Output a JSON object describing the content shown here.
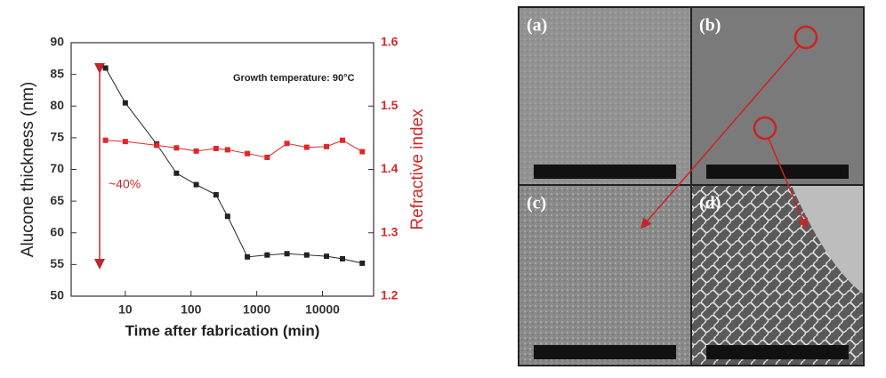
{
  "chart_data": {
    "type": "line",
    "xlabel": "Time after fabrication (min)",
    "ylabel": "Alucone thickness (nm)",
    "y2label": "Refractive index",
    "annotations": [
      "Growth temperature: 90°C",
      "~40%"
    ],
    "xscale": "log",
    "x": [
      5,
      10,
      30,
      60,
      120,
      240,
      360,
      720,
      1440,
      2880,
      5760,
      11520,
      20160,
      40320
    ],
    "series": [
      {
        "name": "Alucone thickness",
        "color": "#222222",
        "axis": "y",
        "values": [
          86,
          80.5,
          74,
          69.4,
          67.6,
          66,
          62.6,
          56.2,
          56.5,
          56.7,
          56.5,
          56.3,
          55.9,
          55.2
        ]
      },
      {
        "name": "Refractive index",
        "color": "#e0282a",
        "axis": "y2",
        "values": [
          1.446,
          1.444,
          1.438,
          1.434,
          1.429,
          1.433,
          1.431,
          1.425,
          1.419,
          1.441,
          1.435,
          1.436,
          1.446,
          1.428
        ]
      }
    ],
    "xlim": [
      1.5,
      60000
    ],
    "xticks": [
      10,
      100,
      1000,
      10000
    ],
    "ylim": [
      50,
      90
    ],
    "yticks": [
      50,
      55,
      60,
      65,
      70,
      75,
      80,
      85,
      90
    ],
    "y2lim": [
      1.2,
      1.6
    ],
    "y2ticks": [
      1.2,
      1.3,
      1.4,
      1.5,
      1.6
    ]
  },
  "panels": [
    "(a)",
    "(b)",
    "(c)",
    "(d)"
  ]
}
